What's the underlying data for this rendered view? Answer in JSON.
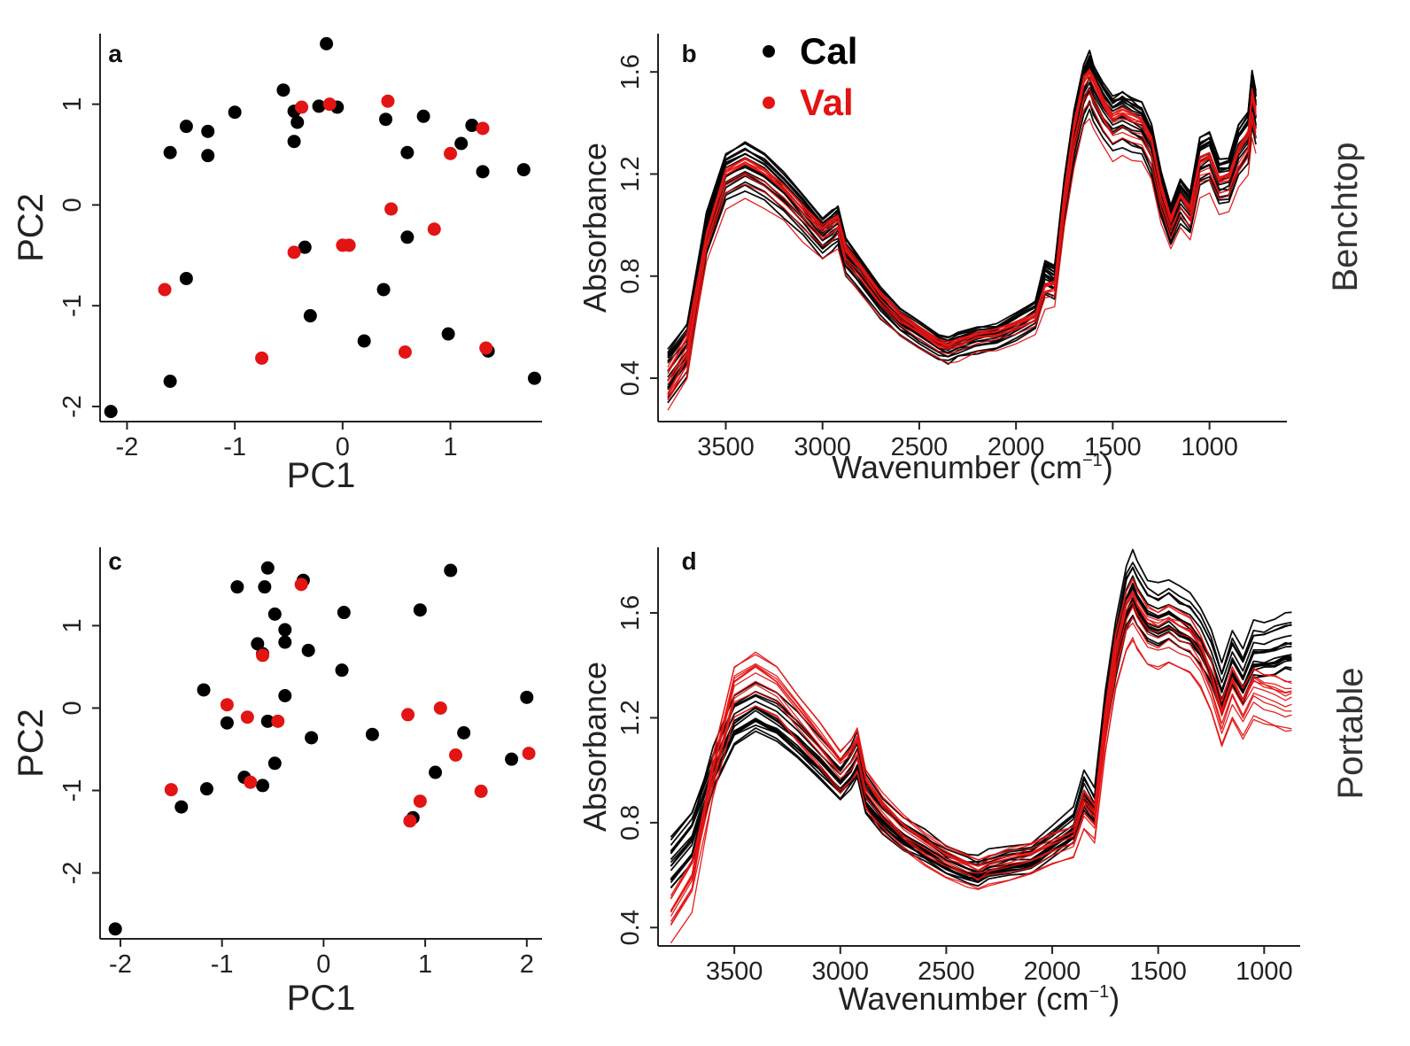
{
  "colors": {
    "cal": "#000000",
    "val": "#e31414",
    "axis": "#222222"
  },
  "chart_data": [
    {
      "panel": "a",
      "type": "scatter",
      "xlabel": "PC1",
      "ylabel": "PC2",
      "xlim": [
        -2.25,
        1.85
      ],
      "ylim": [
        -2.15,
        1.7
      ],
      "xticks": [
        -2,
        -1,
        0,
        1
      ],
      "yticks": [
        -2,
        -1,
        0,
        1
      ],
      "series": [
        {
          "name": "Cal",
          "points": [
            [
              -2.15,
              -2.05
            ],
            [
              -1.6,
              -1.75
            ],
            [
              -1.45,
              -0.73
            ],
            [
              -1.6,
              0.52
            ],
            [
              -1.45,
              0.78
            ],
            [
              -1.25,
              0.73
            ],
            [
              -1.25,
              0.49
            ],
            [
              -1.0,
              0.92
            ],
            [
              -0.55,
              1.14
            ],
            [
              -0.45,
              0.63
            ],
            [
              -0.45,
              0.93
            ],
            [
              -0.42,
              0.82
            ],
            [
              -0.35,
              -0.42
            ],
            [
              -0.22,
              0.98
            ],
            [
              -0.15,
              1.6
            ],
            [
              -0.05,
              0.97
            ],
            [
              -0.3,
              -1.1
            ],
            [
              0.2,
              -1.35
            ],
            [
              0.4,
              0.85
            ],
            [
              0.38,
              -0.84
            ],
            [
              0.6,
              0.52
            ],
            [
              0.6,
              -0.32
            ],
            [
              0.75,
              0.88
            ],
            [
              0.98,
              -1.28
            ],
            [
              1.1,
              0.61
            ],
            [
              1.2,
              0.79
            ],
            [
              1.3,
              0.33
            ],
            [
              1.35,
              -1.45
            ],
            [
              1.68,
              0.35
            ],
            [
              1.78,
              -1.72
            ]
          ]
        },
        {
          "name": "Val",
          "points": [
            [
              -1.65,
              -0.84
            ],
            [
              -0.75,
              -1.52
            ],
            [
              -0.45,
              -0.47
            ],
            [
              -0.38,
              0.97
            ],
            [
              -0.12,
              1.0
            ],
            [
              0.0,
              -0.4
            ],
            [
              0.06,
              -0.4
            ],
            [
              0.42,
              1.03
            ],
            [
              0.45,
              -0.04
            ],
            [
              0.58,
              -1.46
            ],
            [
              0.85,
              -0.24
            ],
            [
              1.0,
              0.51
            ],
            [
              1.3,
              0.76
            ],
            [
              1.33,
              -1.42
            ]
          ]
        }
      ]
    },
    {
      "panel": "b",
      "type": "line",
      "xlabel": "Wavenumber (cm",
      "xlabel_sup": "−1",
      "xlabel_end": ")",
      "ylabel": "Absorbance",
      "side_label": "Benchtop",
      "xlim": [
        3850,
        600
      ],
      "ylim": [
        0.23,
        1.75
      ],
      "xticks": [
        3500,
        3000,
        2500,
        2000,
        1500,
        1000
      ],
      "yticks": [
        0.4,
        0.8,
        1.2,
        1.6
      ],
      "ytick_labels": [
        "0.4",
        "0.8",
        "1.2",
        "1.6"
      ],
      "legend": {
        "position": "top-left",
        "entries": [
          "Cal",
          "Val"
        ]
      },
      "x": [
        3800,
        3700,
        3600,
        3500,
        3400,
        3300,
        3200,
        3100,
        3000,
        2950,
        2920,
        2880,
        2800,
        2700,
        2600,
        2500,
        2400,
        2350,
        2300,
        2200,
        2100,
        2000,
        1900,
        1850,
        1800,
        1750,
        1700,
        1650,
        1620,
        1600,
        1550,
        1500,
        1450,
        1400,
        1350,
        1300,
        1250,
        1200,
        1150,
        1100,
        1050,
        1000,
        950,
        900,
        850,
        800,
        780,
        760
      ],
      "series": [
        {
          "name": "Cal",
          "values": [
            0.42,
            0.52,
            0.97,
            1.19,
            1.23,
            1.19,
            1.12,
            1.04,
            0.95,
            0.98,
            1.0,
            0.88,
            0.8,
            0.7,
            0.62,
            0.57,
            0.52,
            0.51,
            0.53,
            0.55,
            0.56,
            0.6,
            0.65,
            0.8,
            0.78,
            1.1,
            1.35,
            1.52,
            1.57,
            1.52,
            1.45,
            1.4,
            1.42,
            1.4,
            1.38,
            1.3,
            1.12,
            1.0,
            1.1,
            1.05,
            1.25,
            1.27,
            1.17,
            1.18,
            1.3,
            1.35,
            1.5,
            1.42
          ]
        },
        {
          "name": "Val",
          "values": [
            0.35,
            0.48,
            0.93,
            1.16,
            1.2,
            1.16,
            1.1,
            1.02,
            0.95,
            0.97,
            0.99,
            0.87,
            0.8,
            0.7,
            0.62,
            0.57,
            0.52,
            0.51,
            0.52,
            0.55,
            0.56,
            0.59,
            0.62,
            0.73,
            0.74,
            1.08,
            1.33,
            1.5,
            1.53,
            1.5,
            1.42,
            1.36,
            1.38,
            1.36,
            1.35,
            1.28,
            1.1,
            0.98,
            1.07,
            1.02,
            1.2,
            1.22,
            1.13,
            1.14,
            1.24,
            1.3,
            1.45,
            1.38
          ]
        }
      ]
    },
    {
      "panel": "c",
      "type": "scatter",
      "xlabel": "PC1",
      "ylabel": "PC2",
      "xlim": [
        -2.2,
        2.15
      ],
      "ylim": [
        -2.8,
        1.95
      ],
      "xticks": [
        -2,
        -1,
        0,
        1,
        2
      ],
      "yticks": [
        -2,
        -1,
        0,
        1
      ],
      "series": [
        {
          "name": "Cal",
          "points": [
            [
              -2.05,
              -2.68
            ],
            [
              -1.4,
              -1.2
            ],
            [
              -1.15,
              -0.98
            ],
            [
              -1.18,
              0.22
            ],
            [
              -0.95,
              -0.18
            ],
            [
              -0.85,
              1.47
            ],
            [
              -0.78,
              -0.84
            ],
            [
              -0.65,
              0.78
            ],
            [
              -0.6,
              0.66
            ],
            [
              -0.6,
              -0.94
            ],
            [
              -0.58,
              1.47
            ],
            [
              -0.55,
              -0.16
            ],
            [
              -0.55,
              1.7
            ],
            [
              -0.48,
              1.14
            ],
            [
              -0.48,
              -0.67
            ],
            [
              -0.38,
              0.95
            ],
            [
              -0.38,
              0.8
            ],
            [
              -0.38,
              0.15
            ],
            [
              -0.2,
              1.55
            ],
            [
              -0.15,
              0.7
            ],
            [
              -0.12,
              -0.36
            ],
            [
              0.18,
              0.46
            ],
            [
              0.2,
              1.16
            ],
            [
              0.48,
              -0.32
            ],
            [
              0.88,
              -1.33
            ],
            [
              0.95,
              1.19
            ],
            [
              1.1,
              -0.78
            ],
            [
              1.25,
              1.67
            ],
            [
              1.38,
              -0.3
            ],
            [
              1.85,
              -0.62
            ],
            [
              2.0,
              0.13
            ]
          ]
        },
        {
          "name": "Val",
          "points": [
            [
              -1.5,
              -0.99
            ],
            [
              -0.95,
              0.04
            ],
            [
              -0.75,
              -0.11
            ],
            [
              -0.72,
              -0.9
            ],
            [
              -0.6,
              0.64
            ],
            [
              -0.45,
              -0.16
            ],
            [
              -0.22,
              1.5
            ],
            [
              0.83,
              -0.08
            ],
            [
              0.85,
              -1.37
            ],
            [
              0.95,
              -1.13
            ],
            [
              1.15,
              0.0
            ],
            [
              1.3,
              -0.57
            ],
            [
              1.55,
              -1.01
            ],
            [
              2.02,
              -0.55
            ]
          ]
        }
      ]
    },
    {
      "panel": "d",
      "type": "line",
      "xlabel": "Wavenumber (cm",
      "xlabel_sup": "−1",
      "xlabel_end": ")",
      "ylabel": "Absorbance",
      "side_label": "Portable",
      "xlim": [
        3860,
        830
      ],
      "ylim": [
        0.33,
        1.85
      ],
      "xticks": [
        3500,
        3000,
        2500,
        2000,
        1500,
        1000
      ],
      "yticks": [
        0.4,
        0.8,
        1.2,
        1.6
      ],
      "ytick_labels": [
        "0.4",
        "0.8",
        "1.2",
        "1.6"
      ],
      "x": [
        3800,
        3700,
        3600,
        3500,
        3400,
        3300,
        3200,
        3100,
        3000,
        2950,
        2920,
        2880,
        2800,
        2700,
        2600,
        2500,
        2400,
        2350,
        2300,
        2200,
        2100,
        2000,
        1900,
        1850,
        1800,
        1750,
        1700,
        1650,
        1620,
        1600,
        1550,
        1500,
        1450,
        1400,
        1350,
        1300,
        1250,
        1200,
        1150,
        1100,
        1050,
        1000,
        950,
        900,
        870
      ],
      "series": [
        {
          "name": "Cal",
          "values": [
            0.62,
            0.72,
            1.0,
            1.18,
            1.23,
            1.19,
            1.12,
            1.04,
            0.95,
            1.0,
            1.05,
            0.9,
            0.82,
            0.75,
            0.7,
            0.65,
            0.62,
            0.61,
            0.63,
            0.65,
            0.66,
            0.72,
            0.78,
            0.92,
            0.85,
            1.2,
            1.45,
            1.65,
            1.7,
            1.66,
            1.6,
            1.58,
            1.6,
            1.57,
            1.55,
            1.5,
            1.42,
            1.3,
            1.42,
            1.35,
            1.45,
            1.45,
            1.46,
            1.48,
            1.48
          ]
        },
        {
          "name": "Val",
          "values": [
            0.45,
            0.58,
            0.98,
            1.3,
            1.35,
            1.3,
            1.2,
            1.1,
            1.0,
            1.04,
            1.08,
            0.93,
            0.84,
            0.76,
            0.7,
            0.65,
            0.62,
            0.6,
            0.62,
            0.64,
            0.66,
            0.7,
            0.73,
            0.85,
            0.8,
            1.15,
            1.42,
            1.58,
            1.62,
            1.58,
            1.52,
            1.5,
            1.52,
            1.5,
            1.48,
            1.42,
            1.32,
            1.18,
            1.3,
            1.22,
            1.3,
            1.28,
            1.27,
            1.25,
            1.25
          ]
        }
      ]
    }
  ]
}
